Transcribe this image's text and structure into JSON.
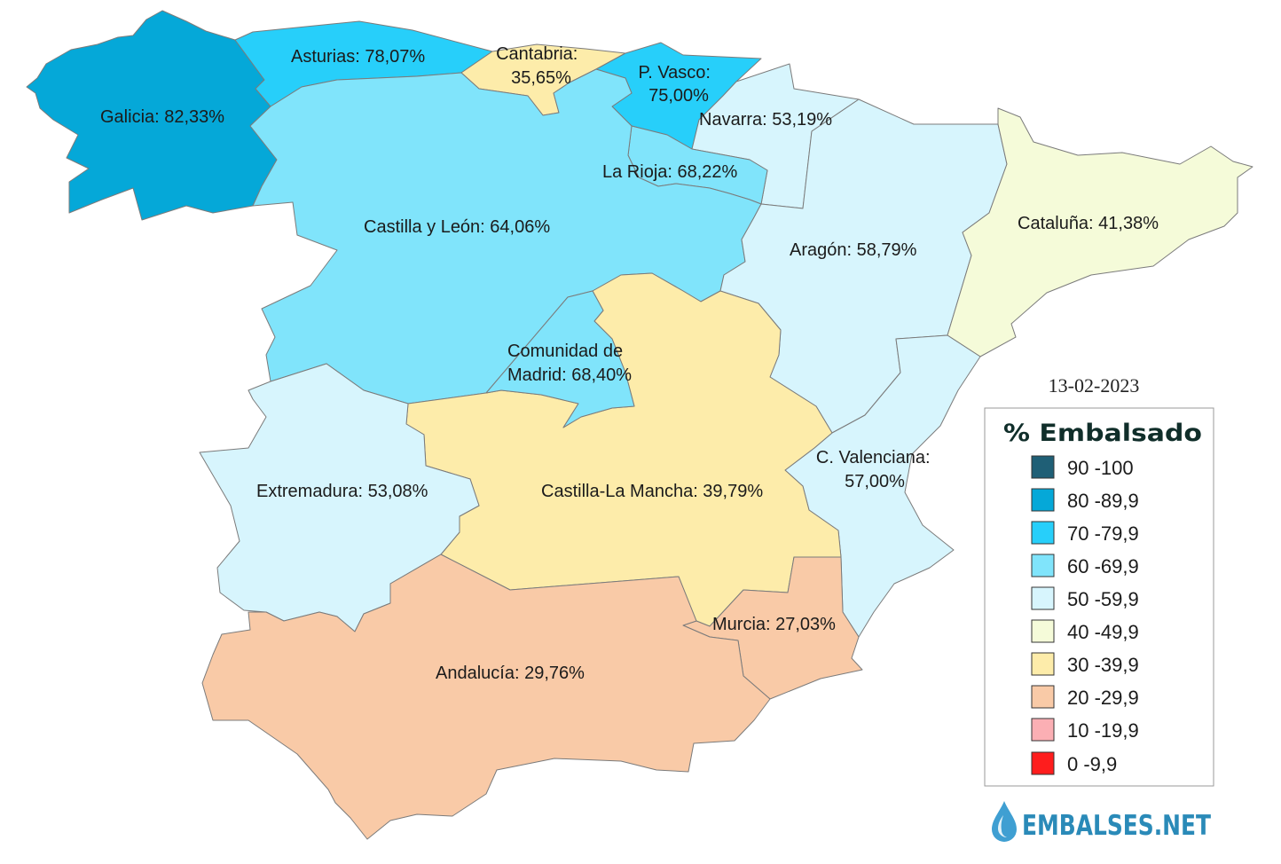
{
  "date": "13-02-2023",
  "legend": {
    "title": "% Embalsado",
    "items": [
      {
        "label": "90 -100",
        "color": "#1f5f76"
      },
      {
        "label": "80 -89,9",
        "color": "#05a8d8"
      },
      {
        "label": "70 -79,9",
        "color": "#27cffa"
      },
      {
        "label": "60 -69,9",
        "color": "#80e4fb"
      },
      {
        "label": "50 -59,9",
        "color": "#d7f5fd"
      },
      {
        "label": "40 -49,9",
        "color": "#f5fbd9"
      },
      {
        "label": "30 -39,9",
        "color": "#fdecaa"
      },
      {
        "label": "20 -29,9",
        "color": "#f9caa7"
      },
      {
        "label": "10 -19,9",
        "color": "#fbafb4"
      },
      {
        "label": "0 -9,9",
        "color": "#fe1d1d"
      }
    ]
  },
  "regions": {
    "galicia": {
      "label": [
        "Galicia: 82,33%"
      ],
      "color": "#05a8d8"
    },
    "asturias": {
      "label": [
        "Asturias: 78,07%"
      ],
      "color": "#27cffa"
    },
    "cantabria": {
      "label": [
        "Cantabria:",
        "35,65%"
      ],
      "color": "#fdecaa"
    },
    "pais_vasco": {
      "label": [
        "P. Vasco:",
        "75,00%"
      ],
      "color": "#27cffa"
    },
    "navarra": {
      "label": [
        "Navarra: 53,19%"
      ],
      "color": "#d7f5fd"
    },
    "la_rioja": {
      "label": [
        "La Rioja: 68,22%"
      ],
      "color": "#80e4fb"
    },
    "castilla_y_leon": {
      "label": [
        "Castilla y León: 64,06%"
      ],
      "color": "#80e4fb"
    },
    "aragon": {
      "label": [
        "Aragón: 58,79%"
      ],
      "color": "#d7f5fd"
    },
    "cataluna": {
      "label": [
        "Cataluña: 41,38%"
      ],
      "color": "#f5fbd9"
    },
    "madrid": {
      "label": [
        "Comunidad de",
        "Madrid: 68,40%"
      ],
      "color": "#80e4fb"
    },
    "extremadura": {
      "label": [
        "Extremadura: 53,08%"
      ],
      "color": "#d7f5fd"
    },
    "castilla_la_mancha": {
      "label": [
        "Castilla-La Mancha: 39,79%"
      ],
      "color": "#fdecaa"
    },
    "valenciana": {
      "label": [
        "C. Valenciana:",
        "57,00%"
      ],
      "color": "#d7f5fd"
    },
    "murcia": {
      "label": [
        "Murcia: 27,03%"
      ],
      "color": "#f9caa7"
    },
    "andalucia": {
      "label": [
        "Andalucía: 29,76%"
      ],
      "color": "#f9caa7"
    }
  },
  "logo": {
    "text": "EMBALSES.NET",
    "color": "#2a8ab8",
    "icon": "water-drop-icon",
    "icon_color": "#3f9fd2"
  }
}
